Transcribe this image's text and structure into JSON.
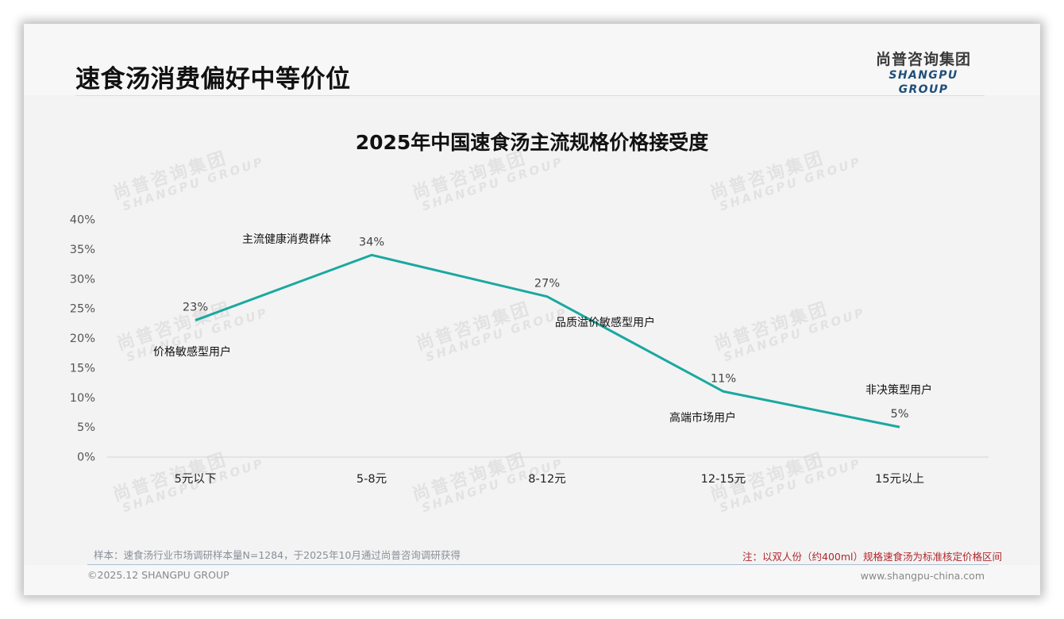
{
  "header": {
    "title": "速食汤消费偏好中等价位",
    "logo_cn": "尚普咨询集团",
    "logo_en": "SHANGPU GROUP"
  },
  "watermark": {
    "cn": "尚普咨询集团",
    "en": "SHANGPU GROUP"
  },
  "colors": {
    "line": "#1aa8a0",
    "note_red": "#b0282d",
    "logo_blue": "#1f4f7a"
  },
  "chart_data": {
    "type": "line",
    "title": "2025年中国速食汤主流规格价格接受度",
    "xlabel": "",
    "ylabel": "",
    "categories": [
      "5元以下",
      "5-8元",
      "8-12元",
      "12-15元",
      "15元以上"
    ],
    "series": [
      {
        "name": "价格接受度",
        "values": [
          23,
          34,
          27,
          11,
          5
        ]
      }
    ],
    "data_labels": [
      "23%",
      "34%",
      "27%",
      "11%",
      "5%"
    ],
    "annotations": [
      {
        "category": "5元以下",
        "text": "价格敏感型用户"
      },
      {
        "category": "5-8元",
        "text": "主流健康消费群体"
      },
      {
        "category": "8-12元",
        "text": "品质溢价敏感型用户"
      },
      {
        "category": "12-15元",
        "text": "高端市场用户"
      },
      {
        "category": "15元以上",
        "text": "非决策型用户"
      }
    ],
    "yticks": [
      "0%",
      "5%",
      "10%",
      "15%",
      "20%",
      "25%",
      "30%",
      "35%",
      "40%"
    ],
    "ylim": [
      0,
      40
    ],
    "grid": false,
    "legend": "none"
  },
  "footer": {
    "sample_note": "样本：速食汤行业市场调研样本量N=1284，于2025年10月通过尚普咨询调研获得",
    "red_note": "注：以双人份（约400ml）规格速食汤为标准核定价格区间",
    "copyright": "©2025.12 SHANGPU GROUP",
    "website": "www.shangpu-china.com"
  }
}
